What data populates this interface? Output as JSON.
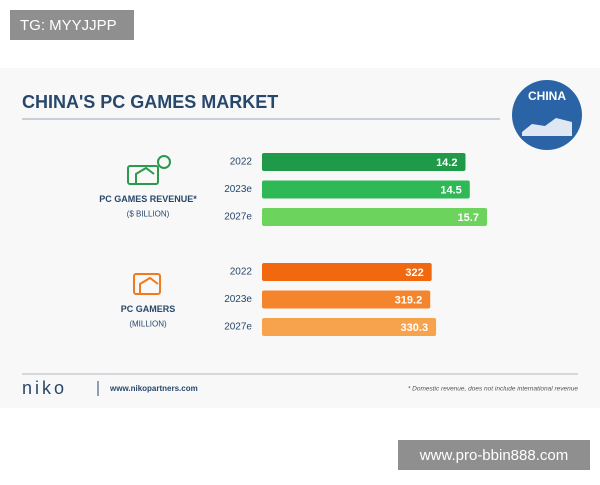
{
  "watermarks": [
    "TG: MYYJJPP",
    "www.pro-bbin888.com"
  ],
  "header": {
    "title": "CHINA'S PC GAMES MARKET",
    "badge": "CHINA"
  },
  "chart_data": [
    {
      "type": "bar",
      "title": "PC GAMES REVENUE*",
      "subtitle": "($ BILLION)",
      "categories": [
        "2022",
        "2023e",
        "2027e"
      ],
      "values": [
        14.2,
        14.5,
        15.7
      ],
      "colors": [
        "#1f9a48",
        "#2fb956",
        "#6cd35c"
      ]
    },
    {
      "type": "bar",
      "title": "PC GAMERS",
      "subtitle": "(MILLION)",
      "categories": [
        "2022",
        "2023e",
        "2027e"
      ],
      "values": [
        322,
        319.2,
        330.3
      ],
      "colors": [
        "#f2680f",
        "#f5852c",
        "#f7a24c"
      ]
    }
  ],
  "footer": {
    "brand": "niko",
    "url": "www.nikopartners.com",
    "note": "* Domestic revenue, does not include international revenue"
  }
}
